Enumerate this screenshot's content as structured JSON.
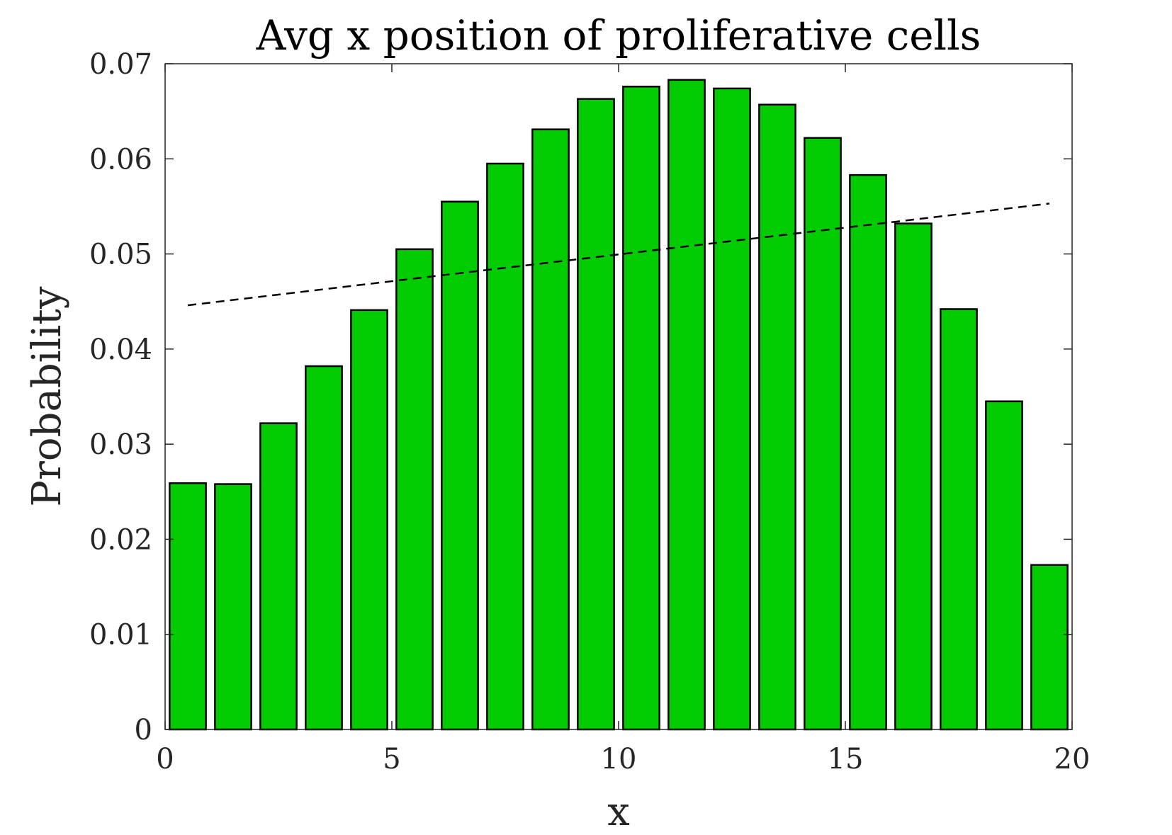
{
  "chart_data": {
    "type": "bar",
    "title": "Avg x position of proliferative cells",
    "xlabel": "x",
    "ylabel": "Probability",
    "xlim": [
      0,
      20
    ],
    "ylim": [
      0,
      0.07
    ],
    "x_ticks": [
      "0",
      "5",
      "10",
      "15",
      "20"
    ],
    "y_ticks": [
      "0",
      "0.01",
      "0.02",
      "0.03",
      "0.04",
      "0.05",
      "0.06",
      "0.07"
    ],
    "x": [
      0.5,
      1.5,
      2.5,
      3.5,
      4.5,
      5.5,
      6.5,
      7.5,
      8.5,
      9.5,
      10.5,
      11.5,
      12.5,
      13.5,
      14.5,
      15.5,
      16.5,
      17.5,
      18.5,
      19.5
    ],
    "values": [
      0.0259,
      0.0258,
      0.0322,
      0.0382,
      0.0441,
      0.0505,
      0.0555,
      0.0595,
      0.0631,
      0.0663,
      0.0676,
      0.0683,
      0.0674,
      0.0657,
      0.0622,
      0.0583,
      0.0532,
      0.0442,
      0.0345,
      0.0173
    ],
    "bar_color": "#00CC00",
    "reference_line": {
      "style": "dashed",
      "color": "#000000",
      "x": [
        0.5,
        19.5
      ],
      "y": [
        0.0446,
        0.0553
      ]
    },
    "grid": false,
    "legend": "none"
  }
}
